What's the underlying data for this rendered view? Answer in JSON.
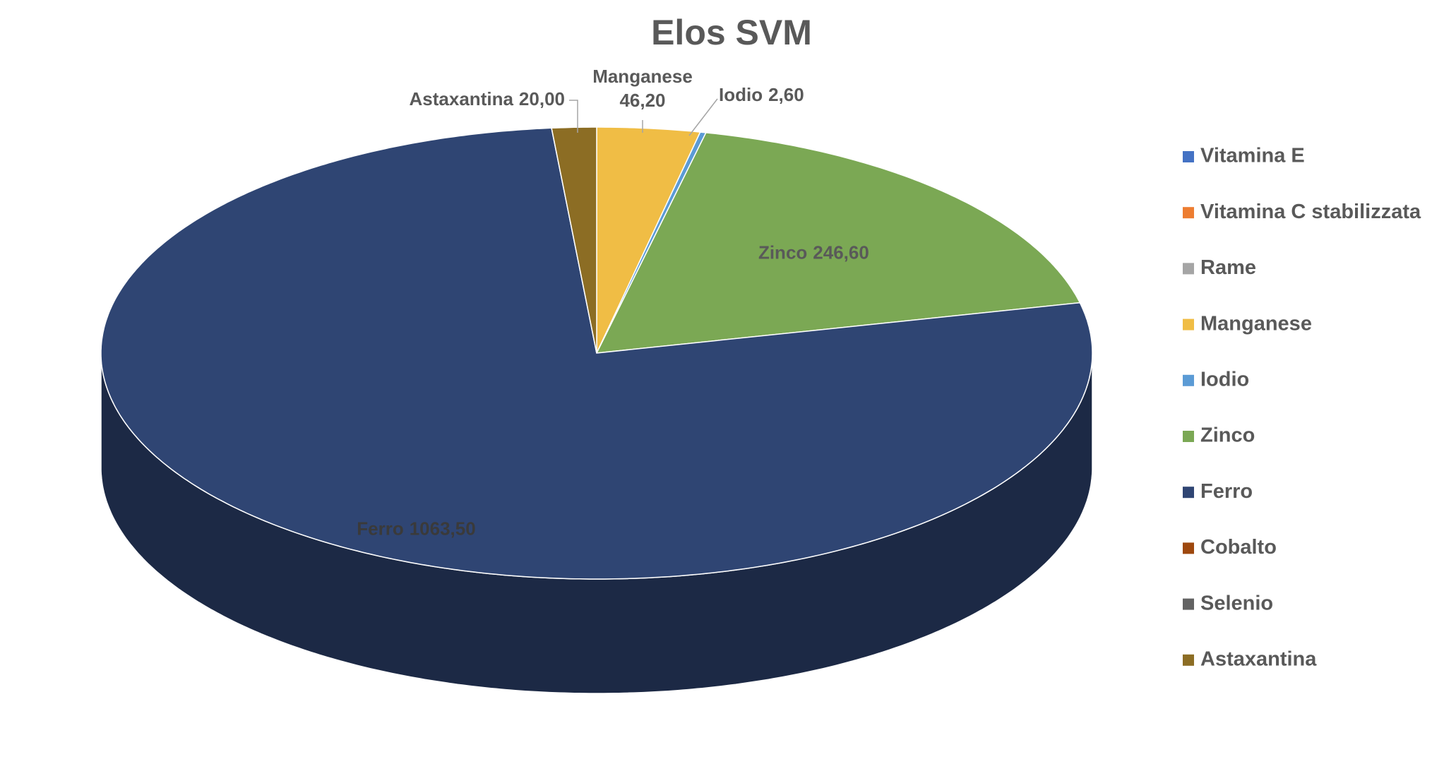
{
  "chart_data": {
    "type": "pie",
    "title": "Elos SVM",
    "categories": [
      "Vitamina E",
      "Vitamina C stabilizzata",
      "Rame",
      "Manganese",
      "Iodio",
      "Zinco",
      "Ferro",
      "Cobalto",
      "Selenio",
      "Astaxantina"
    ],
    "values": [
      0,
      0,
      0,
      46.2,
      2.6,
      246.6,
      1063.5,
      0,
      0,
      20
    ],
    "value_labels": [
      null,
      null,
      null,
      "46,20",
      "2,60",
      "246,60",
      "1063,50",
      null,
      null,
      "20,00"
    ],
    "colors": [
      "#4472c4",
      "#ed7d31",
      "#a5a5a5",
      "#f0bd45",
      "#5b9bd5",
      "#7ba854",
      "#2f4573",
      "#9e480e",
      "#636363",
      "#8c6d24"
    ],
    "legend": "right"
  }
}
